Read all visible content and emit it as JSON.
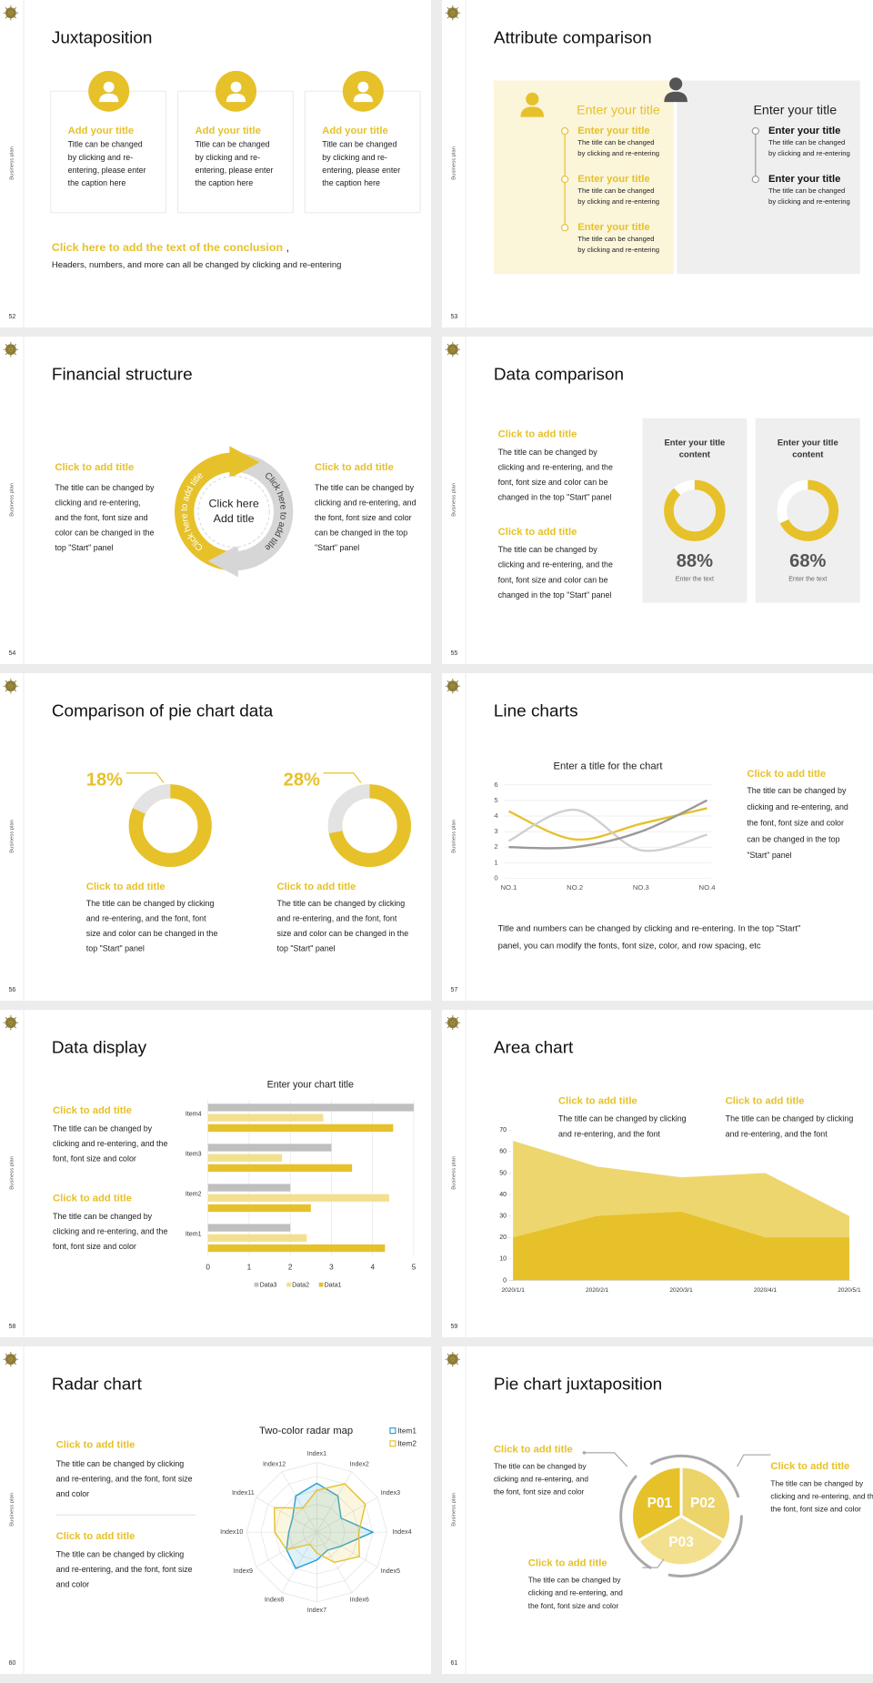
{
  "side_label": "Business plan",
  "slides": [
    {
      "number": "52",
      "title": "Juxtaposition",
      "cards": [
        {
          "title": "Add your title",
          "text": [
            "Title can be changed",
            "by clicking and re-",
            "entering, please enter",
            "the caption here"
          ]
        },
        {
          "title": "Add your title",
          "text": [
            "Title can be changed",
            "by clicking and re-",
            "entering, please enter",
            "the caption here"
          ]
        },
        {
          "title": "Add your title",
          "text": [
            "Title can be changed",
            "by clicking and re-",
            "entering, please enter",
            "the caption here"
          ]
        }
      ],
      "conclusion": "Click here to add the text of the conclusion",
      "conclusion_mark": ",",
      "note": "Headers, numbers, and more can all be changed by clicking and re-entering"
    },
    {
      "number": "53",
      "title": "Attribute comparison",
      "panels": [
        {
          "heading": "Enter your title",
          "items": [
            {
              "title": "Enter your title",
              "text": [
                "The title can be changed",
                "by clicking and re-entering"
              ]
            },
            {
              "title": "Enter your title",
              "text": [
                "The title can be changed",
                "by clicking and re-entering"
              ]
            },
            {
              "title": "Enter your title",
              "text": [
                "The title can be changed",
                "by clicking and re-entering"
              ]
            }
          ]
        },
        {
          "heading": "Enter your title",
          "items": [
            {
              "title": "Enter your title",
              "text": [
                "The title can be changed",
                "by clicking and re-entering"
              ]
            },
            {
              "title": "Enter your title",
              "text": [
                "The title can be changed",
                "by clicking and re-entering"
              ]
            }
          ]
        }
      ]
    },
    {
      "number": "54",
      "title": "Financial structure",
      "blocks": [
        {
          "title": "Click to add title",
          "text": [
            "The title can be changed by",
            "clicking and re-entering,",
            "and the font, font size and",
            "color can be changed in the",
            "top \"Start\" panel"
          ]
        },
        {
          "title": "Click to add title",
          "text": [
            "The title can be changed by",
            "clicking and re-entering, and",
            "the font, font size and color",
            "can be changed in the top",
            "\"Start\" panel"
          ]
        }
      ],
      "center": [
        "Click here",
        "Add title"
      ],
      "arc_labels": [
        "Click here to add title",
        "Click here to add title"
      ]
    },
    {
      "number": "55",
      "title": "Data comparison",
      "blocks": [
        {
          "title": "Click to add title",
          "text": [
            "The title can be changed by",
            "clicking and re-entering, and the",
            "font, font size and color can be",
            "changed in the top \"Start\" panel"
          ]
        },
        {
          "title": "Click to add title",
          "text": [
            "The title can be changed by",
            "clicking and re-entering, and the",
            "font, font size and color can be",
            "changed in the top \"Start\" panel"
          ]
        }
      ],
      "gauges": [
        {
          "heading": [
            "Enter your title",
            "content"
          ],
          "value": 88,
          "value_label": "88%",
          "caption": "Enter the text",
          "color": "#e6c12a"
        },
        {
          "heading": [
            "Enter your title",
            "content"
          ],
          "value": 68,
          "value_label": "68%",
          "caption": "Enter the text",
          "color": "#e6c12a"
        }
      ]
    },
    {
      "number": "56",
      "title": "Comparison of pie chart data",
      "donuts": [
        {
          "value": 18,
          "value_label": "18%",
          "title": "Click to add title",
          "text": [
            "The title can be changed by clicking",
            "and re-entering, and the font, font",
            "size and color can be changed in the",
            "top \"Start\" panel"
          ]
        },
        {
          "value": 28,
          "value_label": "28%",
          "title": "Click to add title",
          "text": [
            "The title can be changed by clicking",
            "and re-entering, and the font, font",
            "size and color can be changed in the",
            "top \"Start\" panel"
          ]
        }
      ]
    },
    {
      "number": "57",
      "title": "Line charts",
      "chart": {
        "type": "line",
        "title": "Enter a title for the chart",
        "categories": [
          "NO.1",
          "NO.2",
          "NO.3",
          "NO.4"
        ],
        "series": [
          {
            "color": "#e6c12a",
            "values": [
              4.3,
              2.5,
              3.5,
              4.5
            ]
          },
          {
            "color": "#cfcfcf",
            "values": [
              2.4,
              4.4,
              1.8,
              2.8
            ]
          },
          {
            "color": "#999999",
            "values": [
              2,
              2,
              3,
              5
            ]
          }
        ],
        "ylim": [
          0,
          6
        ],
        "yticks": [
          0,
          1,
          2,
          3,
          4,
          5,
          6
        ],
        "grid": true
      },
      "block": {
        "title": "Click to add title",
        "text": [
          "The title can be changed by",
          "clicking and re-entering, and",
          "the font, font size and color",
          "can be changed in the top",
          "\"Start\" panel"
        ]
      },
      "footer": [
        "Title and numbers can be changed by clicking and re-entering. In the top \"Start\"",
        "panel, you can modify the fonts, font size, color, and row spacing, etc"
      ]
    },
    {
      "number": "58",
      "title": "Data display",
      "blocks": [
        {
          "title": "Click to add title",
          "text": [
            "The title can be changed by",
            "clicking and re-entering, and the",
            "font, font size and color"
          ]
        },
        {
          "title": "Click to add title",
          "text": [
            "The title can be changed by",
            "clicking and re-entering, and the",
            "font, font size and color"
          ]
        }
      ],
      "chart": {
        "type": "hbar",
        "title": "Enter your chart title",
        "categories": [
          "Item1",
          "Item2",
          "Item3",
          "Item4"
        ],
        "series": [
          {
            "name": "Data1",
            "color": "#e6c12a",
            "values": [
              4.3,
              2.5,
              3.5,
              4.5
            ]
          },
          {
            "name": "Data2",
            "color": "#f2e08e",
            "values": [
              2.4,
              4.4,
              1.8,
              2.8
            ]
          },
          {
            "name": "Data3",
            "color": "#bfbfbf",
            "values": [
              2,
              2,
              3,
              5
            ]
          }
        ],
        "xlim": [
          0,
          5
        ],
        "xticks": [
          0,
          1,
          2,
          3,
          4,
          5
        ],
        "grid": true,
        "legend": "bottom"
      }
    },
    {
      "number": "59",
      "title": "Area chart",
      "blocks": [
        {
          "title": "Click to add title",
          "text": [
            "The title can be changed by clicking",
            "and re-entering, and the font"
          ]
        },
        {
          "title": "Click to add title",
          "text": [
            "The title can be changed by clicking",
            "and re-entering, and the font"
          ]
        }
      ],
      "chart": {
        "type": "area",
        "categories": [
          "2020/1/1",
          "2020/2/1",
          "2020/3/1",
          "2020/4/1",
          "2020/5/1"
        ],
        "series": [
          {
            "color": "#eed66f",
            "values": [
              65,
              53,
              48,
              50,
              30
            ]
          },
          {
            "color": "#e6c12a",
            "values": [
              20,
              30,
              32,
              20,
              20
            ]
          }
        ],
        "ylim": [
          0,
          70
        ],
        "yticks": [
          0,
          10,
          20,
          30,
          40,
          50,
          60,
          70
        ],
        "grid": false
      }
    },
    {
      "number": "60",
      "title": "Radar chart",
      "blocks": [
        {
          "title": "Click to add title",
          "text": [
            "The title can be changed by clicking",
            "and re-entering, and the font, font size",
            "and color"
          ]
        },
        {
          "title": "Click to add title",
          "text": [
            "The title can be changed by clicking",
            "and re-entering, and the font, font size",
            "and color"
          ]
        }
      ],
      "chart": {
        "type": "radar",
        "title": "Two-color radar map",
        "categories": [
          "Index1",
          "Index2",
          "Index3",
          "Index4",
          "Index5",
          "Index6",
          "Index7",
          "Index8",
          "Index9",
          "Index10",
          "Index11",
          "Index12"
        ],
        "series": [
          {
            "name": "Item1",
            "color": "#2b9fd6",
            "values": [
              3.5,
              3,
              2,
              4,
              2,
              1.5,
              2,
              3,
              2.5,
              2,
              2,
              3
            ]
          },
          {
            "name": "Item2",
            "color": "#e6c12a",
            "values": [
              3,
              4,
              4,
              3,
              3.5,
              2.5,
              1.5,
              1,
              2.5,
              3,
              3.5,
              2
            ]
          }
        ],
        "rlim": [
          0,
          5
        ],
        "rticks": [
          1,
          2,
          3,
          4,
          5
        ],
        "legend": "top-right"
      }
    },
    {
      "number": "61",
      "title": "Pie chart juxtaposition",
      "segments": [
        "P01",
        "P02",
        "P03"
      ],
      "blocks": [
        {
          "title": "Click to add title",
          "text": [
            "The title can be changed by",
            "clicking and re-entering, and",
            "the font, font size and color"
          ]
        },
        {
          "title": "Click to add title",
          "text": [
            "The title can be changed by",
            "clicking and re-entering, and the",
            "the font, font size and color"
          ]
        },
        {
          "title": "Click to add title",
          "text": [
            "The title can be changed by",
            "clicking and re-entering, and",
            "the font, font size and color"
          ]
        }
      ]
    }
  ]
}
